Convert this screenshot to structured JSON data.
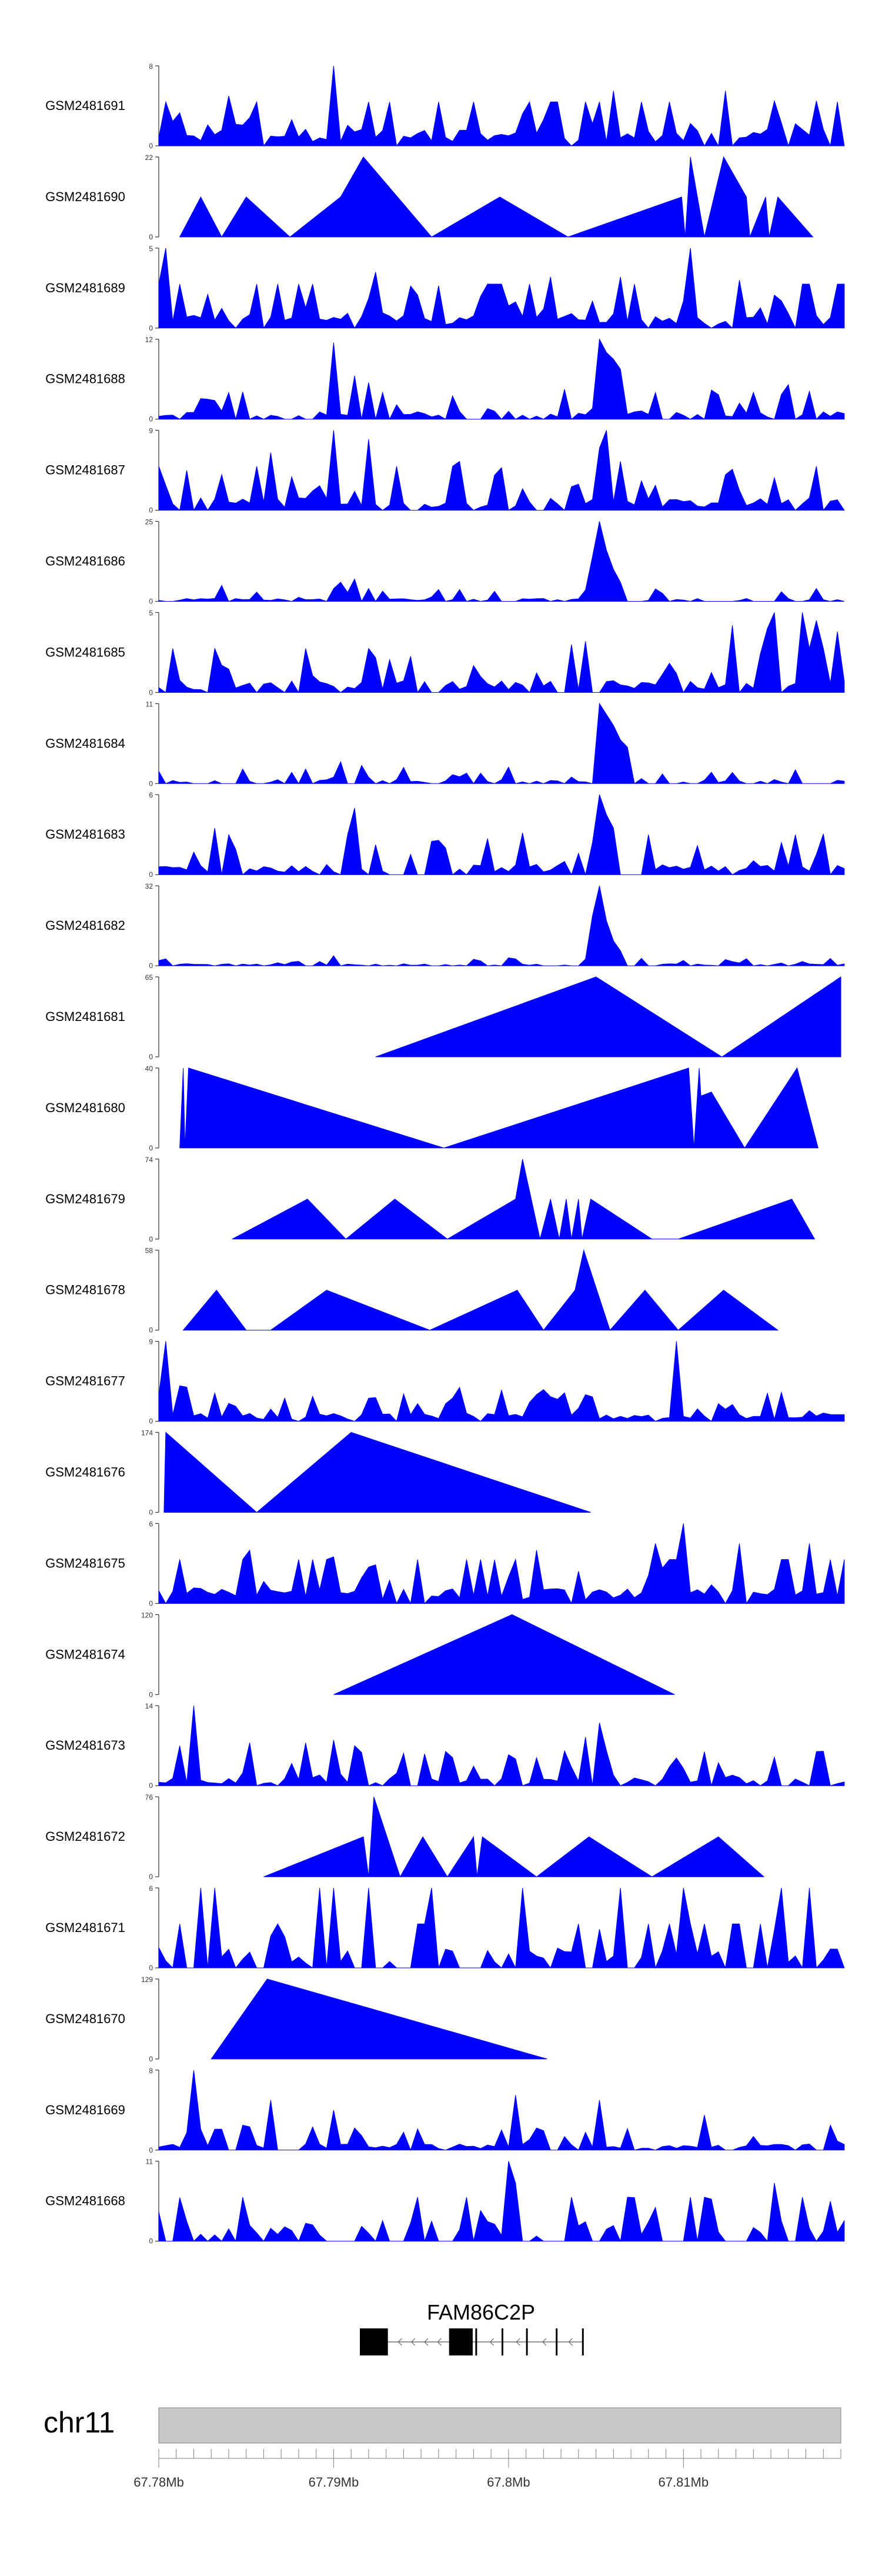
{
  "chart_data": {
    "type": "area",
    "title": "",
    "x_unit": "bp",
    "xlim": [
      67780000,
      67819000
    ],
    "fill_color": "#0000ff",
    "axis_color": "#333333",
    "tracks": [
      {
        "name": "GSM2481691",
        "ymax": 8,
        "ymin": 0,
        "seed": 11,
        "density": 0.8,
        "baseline": 0.16,
        "spikes": [
          [
            67790100,
            8.0
          ],
          [
            67783800,
            5.0
          ],
          [
            67806000,
            5.5
          ],
          [
            67812200,
            5.5
          ],
          [
            67817500,
            4.5
          ],
          [
            67815000,
            4.5
          ]
        ]
      },
      {
        "name": "GSM2481690",
        "ymax": 22,
        "ymin": 0,
        "shape": "sparse",
        "peaks": [
          [
            67781200,
            0
          ],
          [
            67782400,
            11
          ],
          [
            67783600,
            0
          ],
          [
            67785000,
            11
          ],
          [
            67787500,
            0
          ],
          [
            67790400,
            11
          ],
          [
            67791700,
            22
          ],
          [
            67795600,
            0
          ],
          [
            67799500,
            11
          ],
          [
            67803400,
            0
          ],
          [
            67809900,
            11
          ],
          [
            67810100,
            0
          ],
          [
            67810400,
            22
          ],
          [
            67811200,
            0
          ],
          [
            67812300,
            22
          ],
          [
            67813600,
            11
          ],
          [
            67813800,
            0
          ],
          [
            67814700,
            11
          ],
          [
            67814900,
            0
          ],
          [
            67815400,
            11
          ],
          [
            67817400,
            0
          ]
        ]
      },
      {
        "name": "GSM2481689",
        "ymax": 5,
        "ymin": 0,
        "seed": 29,
        "density": 0.95,
        "baseline": 0.15,
        "spikes": [
          [
            67780300,
            5.0
          ],
          [
            67810300,
            5.0
          ],
          [
            67792500,
            3.5
          ],
          [
            67806500,
            3.2
          ],
          [
            67802500,
            3.2
          ],
          [
            67813000,
            3.0
          ]
        ]
      },
      {
        "name": "GSM2481688",
        "ymax": 12,
        "ymin": 0,
        "seed": 37,
        "density": 0.7,
        "baseline": 0.08,
        "spikes": [
          [
            67790100,
            11.5
          ],
          [
            67791100,
            6.5
          ],
          [
            67791800,
            5.5
          ],
          [
            67792700,
            4.0
          ],
          [
            67796800,
            3.5
          ],
          [
            67805000,
            12.0
          ],
          [
            67805400,
            10.0
          ],
          [
            67805800,
            9.0
          ],
          [
            67806400,
            7.5
          ],
          [
            67808300,
            4.0
          ],
          [
            67784000,
            4.0
          ],
          [
            67782800,
            3.0
          ]
        ]
      },
      {
        "name": "GSM2481687",
        "ymax": 9,
        "ymin": 0,
        "seed": 41,
        "density": 0.85,
        "baseline": 0.12,
        "spikes": [
          [
            67790000,
            9.0
          ],
          [
            67791800,
            8.0
          ],
          [
            67786500,
            6.5
          ],
          [
            67805200,
            7.0
          ],
          [
            67805600,
            9.0
          ],
          [
            67806200,
            5.5
          ],
          [
            67797000,
            5.5
          ],
          [
            67783500,
            4.0
          ],
          [
            67812500,
            4.0
          ]
        ]
      },
      {
        "name": "GSM2481686",
        "ymax": 25,
        "ymin": 0,
        "seed": 53,
        "density": 0.6,
        "baseline": 0.03,
        "spikes": [
          [
            67805000,
            25.0
          ],
          [
            67805300,
            22.0
          ],
          [
            67805600,
            16.0
          ],
          [
            67804700,
            14.0
          ],
          [
            67806000,
            10.0
          ],
          [
            67806400,
            6.0
          ],
          [
            67790500,
            6.0
          ],
          [
            67791200,
            7.0
          ],
          [
            67792000,
            4.0
          ],
          [
            67783600,
            5.0
          ]
        ]
      },
      {
        "name": "GSM2481685",
        "ymax": 5,
        "ymin": 0,
        "seed": 59,
        "density": 0.85,
        "baseline": 0.12,
        "spikes": [
          [
            67815300,
            5.0
          ],
          [
            67816600,
            5.0
          ],
          [
            67814600,
            4.0
          ],
          [
            67817600,
            4.5
          ],
          [
            67812700,
            4.2
          ],
          [
            67818900,
            3.8
          ],
          [
            67803400,
            3.0
          ],
          [
            67804500,
            3.2
          ]
        ]
      },
      {
        "name": "GSM2481684",
        "ymax": 11,
        "ymin": 0,
        "seed": 61,
        "density": 0.65,
        "baseline": 0.04,
        "spikes": [
          [
            67805000,
            11.0
          ],
          [
            67805400,
            9.5
          ],
          [
            67805800,
            8.0
          ],
          [
            67806300,
            6.0
          ],
          [
            67806800,
            5.0
          ],
          [
            67790200,
            3.0
          ],
          [
            67791700,
            2.5
          ],
          [
            67784700,
            2.0
          ]
        ]
      },
      {
        "name": "GSM2481683",
        "ymax": 6,
        "ymin": 0,
        "seed": 67,
        "density": 0.8,
        "baseline": 0.1,
        "spikes": [
          [
            67805000,
            6.0
          ],
          [
            67805400,
            4.5
          ],
          [
            67805800,
            3.5
          ],
          [
            67791200,
            5.0
          ],
          [
            67783000,
            3.5
          ],
          [
            67783800,
            3.0
          ],
          [
            67808000,
            3.0
          ],
          [
            67816300,
            3.0
          ],
          [
            67795600,
            2.5
          ],
          [
            67796400,
            2.0
          ]
        ]
      },
      {
        "name": "GSM2481682",
        "ymax": 32,
        "ymin": 0,
        "seed": 71,
        "density": 0.7,
        "baseline": 0.02,
        "spikes": [
          [
            67805000,
            32.0
          ],
          [
            67804800,
            20.0
          ],
          [
            67805400,
            18.0
          ],
          [
            67805900,
            10.0
          ],
          [
            67806400,
            6.0
          ],
          [
            67790000,
            4.0
          ],
          [
            67807700,
            3.0
          ]
        ]
      },
      {
        "name": "GSM2481681",
        "ymax": 65,
        "ymin": 0,
        "shape": "sparse",
        "peaks": [
          [
            67792400,
            0
          ],
          [
            67805000,
            65
          ],
          [
            67812200,
            0
          ],
          [
            67819000,
            65
          ]
        ]
      },
      {
        "name": "GSM2481680",
        "ymax": 40,
        "ymin": 0,
        "shape": "sparse",
        "peaks": [
          [
            67781200,
            0
          ],
          [
            67781400,
            40
          ],
          [
            67781500,
            0
          ],
          [
            67781700,
            40
          ],
          [
            67796300,
            0
          ],
          [
            67810300,
            40
          ],
          [
            67810600,
            0
          ],
          [
            67810900,
            40
          ],
          [
            67811000,
            26
          ],
          [
            67811600,
            28
          ],
          [
            67813500,
            0
          ],
          [
            67816500,
            40
          ],
          [
            67817700,
            0
          ]
        ]
      },
      {
        "name": "GSM2481679",
        "ymax": 74,
        "ymin": 0,
        "shape": "sparse",
        "peaks": [
          [
            67784200,
            0
          ],
          [
            67788500,
            37
          ],
          [
            67790700,
            0
          ],
          [
            67793500,
            37
          ],
          [
            67796500,
            0
          ],
          [
            67800400,
            37
          ],
          [
            67800800,
            74
          ],
          [
            67801800,
            0
          ],
          [
            67802400,
            37
          ],
          [
            67802900,
            0
          ],
          [
            67803300,
            37
          ],
          [
            67803600,
            0
          ],
          [
            67804000,
            37
          ],
          [
            67804200,
            0
          ],
          [
            67804700,
            37
          ],
          [
            67808200,
            0
          ],
          [
            67809700,
            0
          ],
          [
            67816200,
            37
          ],
          [
            67817500,
            0
          ]
        ]
      },
      {
        "name": "GSM2481678",
        "ymax": 58,
        "ymin": 0,
        "shape": "sparse",
        "peaks": [
          [
            67781400,
            0
          ],
          [
            67783300,
            29
          ],
          [
            67785000,
            0
          ],
          [
            67786400,
            0
          ],
          [
            67789600,
            29
          ],
          [
            67795500,
            0
          ],
          [
            67800500,
            29
          ],
          [
            67802000,
            0
          ],
          [
            67803800,
            29
          ],
          [
            67804300,
            58
          ],
          [
            67805800,
            0
          ],
          [
            67807800,
            29
          ],
          [
            67809700,
            0
          ],
          [
            67812300,
            29
          ],
          [
            67815400,
            0
          ]
        ]
      },
      {
        "name": "GSM2481677",
        "ymax": 9,
        "ymin": 0,
        "seed": 83,
        "density": 0.85,
        "baseline": 0.08,
        "spikes": [
          [
            67780400,
            9.0
          ],
          [
            67809700,
            9.0
          ],
          [
            67809400,
            5.5
          ],
          [
            67781200,
            4.0
          ],
          [
            67799500,
            3.5
          ],
          [
            67801500,
            3.0
          ],
          [
            67803000,
            3.2
          ]
        ]
      },
      {
        "name": "GSM2481676",
        "ymax": 174,
        "ymin": 0,
        "shape": "sparse",
        "peaks": [
          [
            67780300,
            0
          ],
          [
            67780400,
            174
          ],
          [
            67785600,
            0
          ],
          [
            67791000,
            174
          ],
          [
            67804700,
            0
          ]
        ]
      },
      {
        "name": "GSM2481675",
        "ymax": 6,
        "ymin": 0,
        "seed": 89,
        "density": 0.9,
        "baseline": 0.15,
        "spikes": [
          [
            67809800,
            6.0
          ],
          [
            67808300,
            4.5
          ],
          [
            67813300,
            4.5
          ],
          [
            67817000,
            4.5
          ],
          [
            67801500,
            4.0
          ],
          [
            67785300,
            4.0
          ],
          [
            67789800,
            3.5
          ]
        ]
      },
      {
        "name": "GSM2481674",
        "ymax": 120,
        "ymin": 0,
        "shape": "sparse",
        "peaks": [
          [
            67790000,
            0
          ],
          [
            67800200,
            120
          ],
          [
            67809500,
            0
          ]
        ]
      },
      {
        "name": "GSM2481673",
        "ymax": 14,
        "ymin": 0,
        "seed": 97,
        "density": 0.85,
        "baseline": 0.08,
        "spikes": [
          [
            67782000,
            14.0
          ],
          [
            67781200,
            7.0
          ],
          [
            67785300,
            7.5
          ],
          [
            67788400,
            7.5
          ],
          [
            67790000,
            8.0
          ],
          [
            67791000,
            7.0
          ],
          [
            67805000,
            11.0
          ],
          [
            67804500,
            8.5
          ],
          [
            67805600,
            6.0
          ],
          [
            67796300,
            6.0
          ]
        ]
      },
      {
        "name": "GSM2481672",
        "ymax": 76,
        "ymin": 0,
        "shape": "sparse",
        "peaks": [
          [
            67786000,
            0
          ],
          [
            67791700,
            38
          ],
          [
            67792000,
            0
          ],
          [
            67792300,
            76
          ],
          [
            67793800,
            0
          ],
          [
            67795100,
            38
          ],
          [
            67796500,
            0
          ],
          [
            67798000,
            38
          ],
          [
            67798200,
            0
          ],
          [
            67798500,
            38
          ],
          [
            67801600,
            0
          ],
          [
            67804600,
            38
          ],
          [
            67808200,
            0
          ],
          [
            67812000,
            38
          ],
          [
            67814600,
            0
          ]
        ]
      },
      {
        "name": "GSM2481671",
        "ymax": 6,
        "ymin": 0,
        "seed": 101,
        "density": 0.55,
        "baseline": 0.2,
        "spikes": [
          [
            67782200,
            6.0
          ],
          [
            67783000,
            6.0
          ],
          [
            67789000,
            6.0
          ],
          [
            67789800,
            6.0
          ],
          [
            67791800,
            6.0
          ],
          [
            67795500,
            6.0
          ],
          [
            67800800,
            6.0
          ],
          [
            67806300,
            6.0
          ],
          [
            67810000,
            6.0
          ],
          [
            67815500,
            6.0
          ],
          [
            67817300,
            6.0
          ]
        ]
      },
      {
        "name": "GSM2481670",
        "ymax": 129,
        "ymin": 0,
        "shape": "sparse",
        "peaks": [
          [
            67783000,
            0
          ],
          [
            67786200,
            129
          ],
          [
            67802200,
            0
          ]
        ]
      },
      {
        "name": "GSM2481669",
        "ymax": 8,
        "ymin": 0,
        "seed": 103,
        "density": 0.85,
        "baseline": 0.06,
        "spikes": [
          [
            67782000,
            8.0
          ],
          [
            67786500,
            5.0
          ],
          [
            67790100,
            4.0
          ],
          [
            67800300,
            5.5
          ],
          [
            67805300,
            5.0
          ],
          [
            67811300,
            3.5
          ],
          [
            67818200,
            2.5
          ]
        ]
      },
      {
        "name": "GSM2481668",
        "ymax": 11,
        "ymin": 0,
        "seed": 107,
        "density": 0.55,
        "baseline": 0.2,
        "spikes": [
          [
            67799900,
            11.0
          ],
          [
            67800200,
            8.0
          ],
          [
            67781000,
            6.0
          ],
          [
            67807200,
            6.0
          ],
          [
            67815300,
            8.0
          ],
          [
            67816700,
            6.0
          ],
          [
            67818300,
            5.5
          ]
        ]
      }
    ],
    "gene": {
      "label": "FAM86C2P",
      "strand": "-",
      "start": 67791500,
      "end": 67804300,
      "exons": [
        [
          67791500,
          67793100
        ],
        [
          67796600,
          67797800
        ],
        [
          67797800,
          67797950
        ],
        [
          67798100,
          67798200
        ],
        [
          67799600,
          67799700
        ],
        [
          67801000,
          67801100
        ],
        [
          67802700,
          67802800
        ],
        [
          67804200,
          67804300
        ]
      ]
    },
    "ideogram": {
      "chromosome": "chr11",
      "tick_step": 1000,
      "labeled_ticks": [
        67780000,
        67790000,
        67800000,
        67810000
      ],
      "tick_labels": [
        "67.78Mb",
        "67.79Mb",
        "67.8Mb",
        "67.81Mb"
      ]
    }
  }
}
